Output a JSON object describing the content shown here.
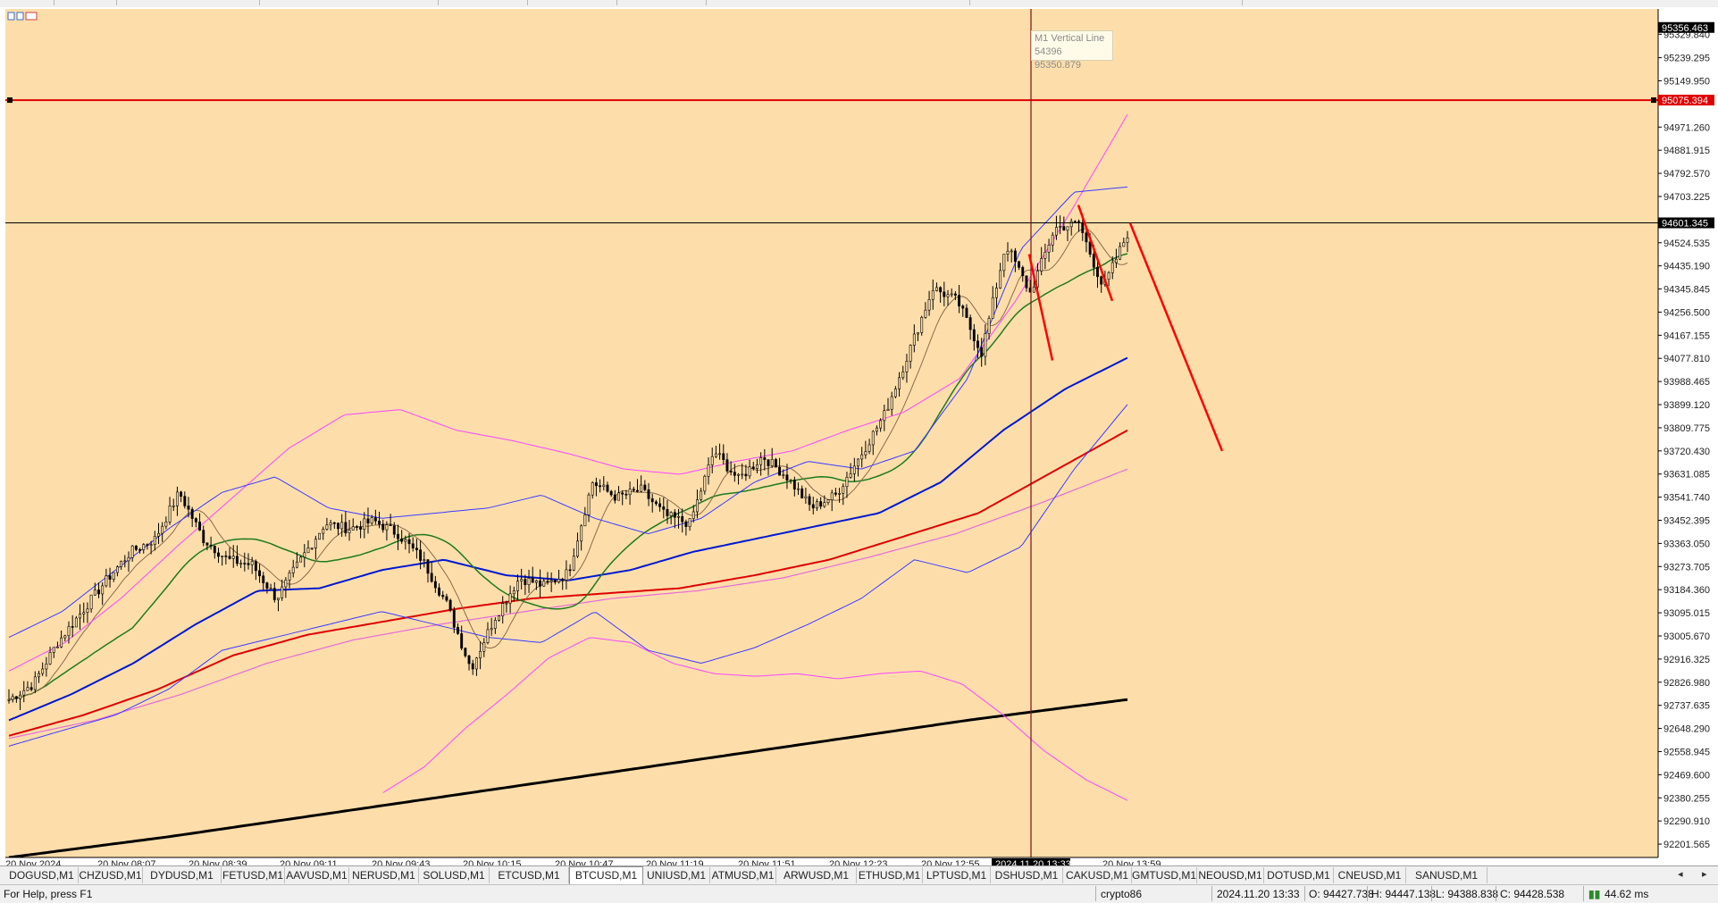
{
  "chart": {
    "symbol": "BTCUSD,M1",
    "background": "#fddeab",
    "price_min": 92150,
    "price_max": 95400,
    "price_labels": [
      "95329.840",
      "95239.295",
      "95149.950",
      "94971.260",
      "94881.915",
      "94792.570",
      "94703.225",
      "94524.535",
      "94435.190",
      "94345.845",
      "94256.500",
      "94167.155",
      "94077.810",
      "93988.465",
      "93899.120",
      "93809.775",
      "93720.430",
      "93631.085",
      "93541.740",
      "93452.395",
      "93363.050",
      "93273.705",
      "93184.360",
      "93095.015",
      "93005.670",
      "92916.325",
      "92826.980",
      "92737.635",
      "92648.290",
      "92558.945",
      "92469.600",
      "92380.255",
      "92290.910",
      "92201.565"
    ],
    "time_labels": [
      "20 Nov 2024",
      "20 Nov 08:07",
      "20 Nov 08:39",
      "20 Nov 09:11",
      "20 Nov 09:43",
      "20 Nov 10:15",
      "20 Nov 10:47",
      "20 Nov 11:19",
      "20 Nov 11:51",
      "20 Nov 12:23",
      "20 Nov 12:55",
      "20 Nov 13:59"
    ],
    "crosshair_time_label": "2024.11.20 13:33",
    "top_price_tag": "95356.463",
    "hline_red_price": 95075.394,
    "hline_red_label": "95075.394",
    "hline_black_price": 94601.345,
    "hline_black_label": "94601.345",
    "vline_tooltip_title": "M1 Vertical Line 54396",
    "vline_tooltip_price": "95350.879",
    "colors": {
      "candle": "#000000",
      "ma_fast": "#8b6a4a",
      "ma_green": "#1e7a1e",
      "ma_blue": "#0018d0",
      "ma_red": "#e00000",
      "ma_pink": "#e86ad8",
      "ma_black": "#000000",
      "bb_outer": "#ff44ff",
      "bb_inner": "#3a3aff",
      "hline_red": "#e00000",
      "vline": "#7a1010",
      "drawing": "#ff0000"
    }
  },
  "tabs": [
    {
      "label": "DOGUSD,M1"
    },
    {
      "label": "CHZUSD,M1"
    },
    {
      "label": "DYDUSD,M1"
    },
    {
      "label": "FETUSD,M1"
    },
    {
      "label": "AAVUSD,M1"
    },
    {
      "label": "NERUSD,M1"
    },
    {
      "label": "SOLUSD,M1"
    },
    {
      "label": "ETCUSD,M1"
    },
    {
      "label": "BTCUSD,M1",
      "active": true
    },
    {
      "label": "UNIUSD,M1"
    },
    {
      "label": "ATMUSD,M1"
    },
    {
      "label": "ARWUSD,M1"
    },
    {
      "label": "ETHUSD,M1"
    },
    {
      "label": "LPTUSD,M1"
    },
    {
      "label": "DSHUSD,M1"
    },
    {
      "label": "CAKUSD,M1"
    },
    {
      "label": "GMTUSD,M1"
    },
    {
      "label": "NEOUSD,M1"
    },
    {
      "label": "DOTUSD,M1"
    },
    {
      "label": "CNEUSD,M1"
    },
    {
      "label": "SANUSD,M1"
    }
  ],
  "status": {
    "help": "For Help, press F1",
    "profile": "crypto86",
    "datetime": "2024.11.20 13:33",
    "open": "O: 94427.738",
    "high": "H: 94447.138",
    "low": "L: 94388.838",
    "close": "C: 94428.538",
    "ping": "44.62 ms"
  }
}
